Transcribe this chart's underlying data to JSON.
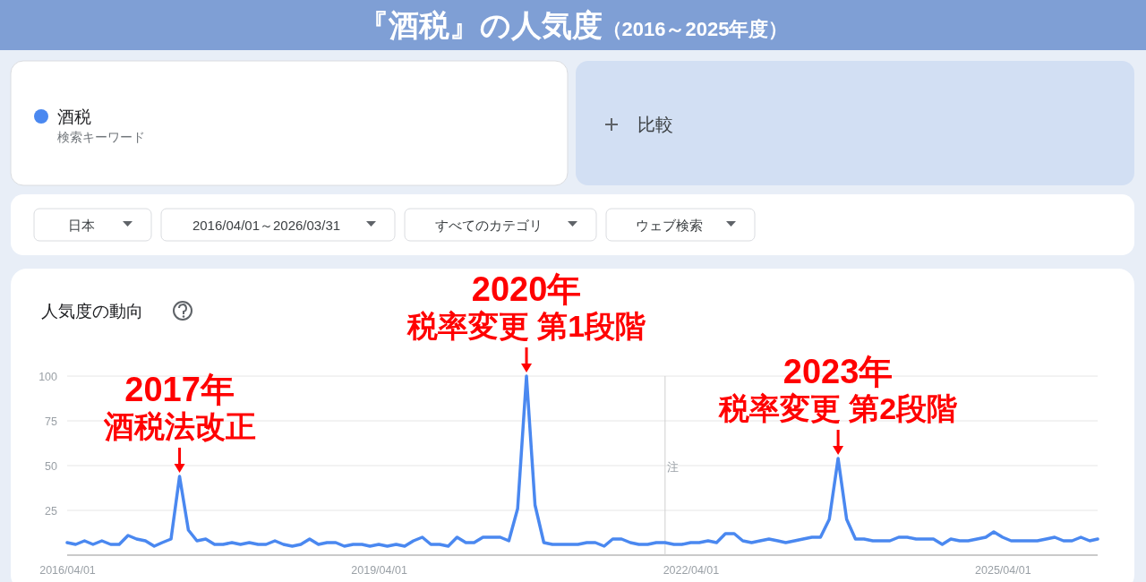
{
  "chart_data": {
    "type": "line",
    "title": "『酒税』の人気度",
    "subtitle": "（2016～2025年度）",
    "x": [
      "2016-04",
      "2016-05",
      "2016-06",
      "2016-07",
      "2016-08",
      "2016-09",
      "2016-10",
      "2016-11",
      "2016-12",
      "2017-01",
      "2017-02",
      "2017-03",
      "2017-04",
      "2017-05",
      "2017-06",
      "2017-07",
      "2017-08",
      "2017-09",
      "2017-10",
      "2017-11",
      "2017-12",
      "2018-01",
      "2018-02",
      "2018-03",
      "2018-04",
      "2018-05",
      "2018-06",
      "2018-07",
      "2018-08",
      "2018-09",
      "2018-10",
      "2018-11",
      "2018-12",
      "2019-01",
      "2019-02",
      "2019-03",
      "2019-04",
      "2019-05",
      "2019-06",
      "2019-07",
      "2019-08",
      "2019-09",
      "2019-10",
      "2019-11",
      "2019-12",
      "2020-01",
      "2020-02",
      "2020-03",
      "2020-04",
      "2020-05",
      "2020-06",
      "2020-07",
      "2020-08",
      "2020-09",
      "2020-10",
      "2020-11",
      "2020-12",
      "2021-01",
      "2021-02",
      "2021-03",
      "2021-04",
      "2021-05",
      "2021-06",
      "2021-07",
      "2021-08",
      "2021-09",
      "2021-10",
      "2021-11",
      "2021-12",
      "2022-01",
      "2022-02",
      "2022-03",
      "2022-04",
      "2022-05",
      "2022-06",
      "2022-07",
      "2022-08",
      "2022-09",
      "2022-10",
      "2022-11",
      "2022-12",
      "2023-01",
      "2023-02",
      "2023-03",
      "2023-04",
      "2023-05",
      "2023-06",
      "2023-07",
      "2023-08",
      "2023-09",
      "2023-10",
      "2023-11",
      "2023-12",
      "2024-01",
      "2024-02",
      "2024-03",
      "2024-04",
      "2024-05",
      "2024-06",
      "2024-07",
      "2024-08",
      "2024-09",
      "2024-10",
      "2024-11",
      "2024-12",
      "2025-01",
      "2025-02",
      "2025-03",
      "2025-04",
      "2025-05",
      "2025-06",
      "2025-07",
      "2025-08",
      "2025-09",
      "2025-10",
      "2025-11",
      "2025-12",
      "2026-01",
      "2026-02",
      "2026-03"
    ],
    "series": [
      {
        "name": "酒税",
        "color": "#4a88f0",
        "values": [
          7,
          6,
          8,
          6,
          8,
          6,
          6,
          11,
          9,
          8,
          5,
          7,
          9,
          44,
          14,
          8,
          9,
          6,
          6,
          7,
          6,
          7,
          6,
          6,
          8,
          6,
          5,
          6,
          9,
          6,
          7,
          7,
          5,
          6,
          6,
          5,
          6,
          5,
          6,
          5,
          8,
          10,
          6,
          6,
          5,
          10,
          7,
          7,
          10,
          10,
          10,
          8,
          26,
          100,
          28,
          7,
          6,
          6,
          6,
          6,
          7,
          7,
          5,
          9,
          9,
          7,
          6,
          6,
          7,
          7,
          6,
          6,
          7,
          7,
          8,
          7,
          12,
          12,
          8,
          7,
          8,
          9,
          8,
          7,
          8,
          9,
          10,
          10,
          20,
          54,
          20,
          9,
          9,
          8,
          8,
          8,
          10,
          10,
          9,
          9,
          9,
          6,
          9,
          8,
          8,
          9,
          10,
          13,
          10,
          8,
          8,
          8,
          8,
          9,
          10,
          8,
          8,
          10,
          8,
          9
        ]
      }
    ],
    "xlim": [
      "2016-04",
      "2026-03"
    ],
    "xticks": [
      {
        "value": "2016-04",
        "label": "2016/04/01"
      },
      {
        "value": "2019-04",
        "label": "2019/04/01"
      },
      {
        "value": "2022-04",
        "label": "2022/04/01"
      },
      {
        "value": "2025-04",
        "label": "2025/04/01"
      }
    ],
    "ylim": [
      0,
      100
    ],
    "yticks": [
      {
        "value": 0,
        "label": null
      },
      25,
      50,
      75,
      100
    ],
    "grid": "y",
    "legend": "top left",
    "marker": "none",
    "line_style": "solid",
    "ref_lines": [
      {
        "axis": "x",
        "value": "2022-01",
        "label": "注"
      }
    ],
    "annotations": [
      "検索キーワード",
      "比較",
      "日本",
      "2016/04/01～2026/03/31",
      "すべてのカテゴリ",
      "ウェブ検索",
      "人気度の動向",
      {
        "text": "2017年",
        "x": "2017-05",
        "y": 44
      },
      {
        "text": "酒税法改正",
        "x": "2017-05",
        "y": 44
      },
      {
        "text": "2020年",
        "x": "2020-09",
        "y": 100
      },
      {
        "text": "税率変更 第1段階",
        "x": "2020-09",
        "y": 100
      },
      {
        "text": "2023年",
        "x": "2023-09",
        "y": 54
      },
      {
        "text": "税率変更 第2段階",
        "x": "2023-09",
        "y": 54
      }
    ]
  }
}
